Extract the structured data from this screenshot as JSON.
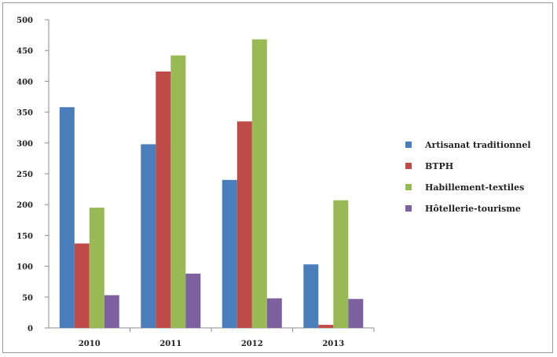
{
  "chart_data": {
    "type": "bar",
    "categories": [
      "2010",
      "2011",
      "2012",
      "2013"
    ],
    "series": [
      {
        "name": "Artisanat traditionnel",
        "color": "#4a7ebb",
        "values": [
          358,
          298,
          240,
          103
        ]
      },
      {
        "name": "BTPH",
        "color": "#be4b48",
        "values": [
          137,
          416,
          335,
          5
        ]
      },
      {
        "name": "Habillement-textiles",
        "color": "#98b954",
        "values": [
          195,
          442,
          468,
          207
        ]
      },
      {
        "name": "Hôtellerie-tourisme",
        "color": "#7d60a0",
        "values": [
          53,
          88,
          48,
          47
        ]
      }
    ],
    "yticks": [
      0,
      50,
      100,
      150,
      200,
      250,
      300,
      350,
      400,
      450,
      500
    ],
    "ylim": [
      0,
      500
    ],
    "grid": false,
    "legend": "right"
  }
}
